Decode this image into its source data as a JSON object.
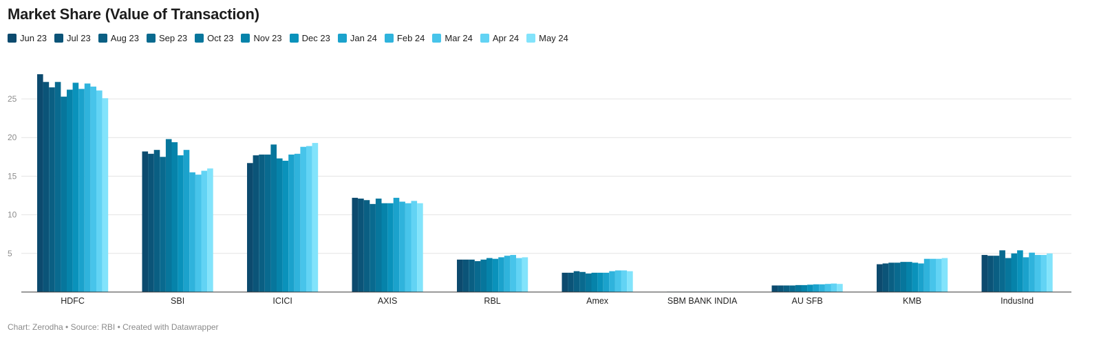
{
  "chart_data": {
    "type": "bar",
    "title": "Market Share (Value of Transaction)",
    "xlabel": "",
    "ylabel": "",
    "ylim": [
      0,
      28.5
    ],
    "yticks": [
      5,
      10,
      15,
      20,
      25
    ],
    "grid": true,
    "legend_position": "top-left",
    "categories": [
      "HDFC",
      "SBI",
      "ICICI",
      "AXIS",
      "RBL",
      "Amex",
      "SBM BANK INDIA",
      "AU SFB",
      "KMB",
      "IndusInd"
    ],
    "series": [
      {
        "name": "Jun 23",
        "color": "#0c4a6e",
        "values": [
          28.2,
          18.2,
          16.7,
          12.2,
          4.2,
          2.5,
          0.05,
          0.85,
          3.6,
          4.8
        ]
      },
      {
        "name": "Jul 23",
        "color": "#0b5478",
        "values": [
          27.2,
          17.9,
          17.7,
          12.1,
          4.2,
          2.5,
          0.05,
          0.85,
          3.7,
          4.7
        ]
      },
      {
        "name": "Aug 23",
        "color": "#0a5f83",
        "values": [
          26.5,
          18.4,
          17.8,
          11.9,
          4.2,
          2.7,
          0.05,
          0.85,
          3.8,
          4.7
        ]
      },
      {
        "name": "Sep 23",
        "color": "#096a8f",
        "values": [
          27.2,
          17.5,
          17.8,
          11.4,
          4.0,
          2.6,
          0.05,
          0.85,
          3.8,
          5.4
        ]
      },
      {
        "name": "Oct 23",
        "color": "#07769c",
        "values": [
          25.3,
          19.8,
          19.1,
          12.1,
          4.2,
          2.4,
          0.05,
          0.9,
          3.9,
          4.4
        ]
      },
      {
        "name": "Nov 23",
        "color": "#0683aa",
        "values": [
          26.2,
          19.4,
          17.3,
          11.5,
          4.4,
          2.5,
          0.05,
          0.9,
          3.9,
          5.0
        ]
      },
      {
        "name": "Dec 23",
        "color": "#0a92bb",
        "values": [
          27.1,
          17.7,
          17.0,
          11.5,
          4.3,
          2.5,
          0.05,
          0.95,
          3.8,
          5.4
        ]
      },
      {
        "name": "Jan 24",
        "color": "#1ba2cc",
        "values": [
          26.3,
          18.4,
          17.8,
          12.2,
          4.5,
          2.5,
          0.05,
          1.0,
          3.7,
          4.5
        ]
      },
      {
        "name": "Feb 24",
        "color": "#2fb3dc",
        "values": [
          27.0,
          15.5,
          17.9,
          11.7,
          4.7,
          2.7,
          0.05,
          1.0,
          4.3,
          5.1
        ]
      },
      {
        "name": "Mar 24",
        "color": "#47c4ea",
        "values": [
          26.6,
          15.2,
          18.8,
          11.5,
          4.8,
          2.8,
          0.05,
          1.05,
          4.3,
          4.8
        ]
      },
      {
        "name": "Apr 24",
        "color": "#62d3f4",
        "values": [
          26.1,
          15.7,
          18.9,
          11.8,
          4.4,
          2.8,
          0.05,
          1.1,
          4.3,
          4.8
        ]
      },
      {
        "name": "May 24",
        "color": "#82e3fb",
        "values": [
          25.1,
          16.0,
          19.3,
          11.5,
          4.5,
          2.7,
          0.05,
          1.05,
          4.4,
          5.0
        ]
      }
    ]
  },
  "footer": "Chart: Zerodha • Source: RBI • Created with Datawrapper"
}
